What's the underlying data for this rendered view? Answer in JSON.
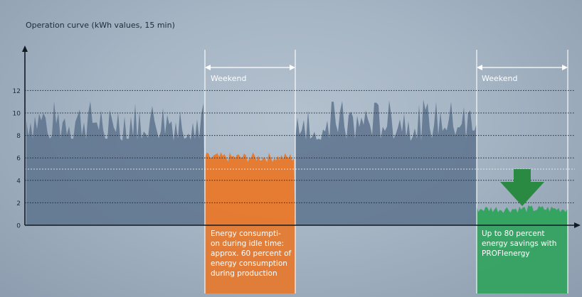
{
  "chart_data": {
    "type": "area",
    "title": "Operation curve (kWh values, 15 min)",
    "xlabel": "",
    "ylabel": "",
    "y_ticks": [
      0,
      2,
      4,
      6,
      8,
      10,
      12
    ],
    "ylim": [
      0,
      15
    ],
    "grid": "dotted horizontal lines at 2, 4, 6, 8, 10, 12; faint line at 5",
    "segments": [
      {
        "name": "production",
        "range": "weekdays 1",
        "baseline_kwh": 7.5,
        "peak_kwh": 11.2,
        "color": "#5d738d"
      },
      {
        "name": "weekend-idle",
        "range": "weekend 1",
        "baseline_kwh": 5.6,
        "peak_kwh": 6.5,
        "color": "#e8782a"
      },
      {
        "name": "production",
        "range": "weekdays 2",
        "baseline_kwh": 7.5,
        "peak_kwh": 11.2,
        "color": "#5d738d"
      },
      {
        "name": "weekend-profienergy",
        "range": "weekend 2",
        "baseline_kwh": 1.1,
        "peak_kwh": 1.8,
        "color": "#2fa35c"
      }
    ],
    "annotations": {
      "weekend_label_1": "Weekend",
      "weekend_label_2": "Weekend",
      "idle_note": [
        "Energy consumpti-",
        "on during idle time:",
        "approx. 60 percent of",
        "energy consumption",
        "during production"
      ],
      "savings_note": [
        "Up to 80 percent",
        "energy savings with",
        "PROFIenergy"
      ]
    }
  },
  "colors": {
    "production": "#5d738d",
    "idle": "#e8782a",
    "savings": "#2fa35c",
    "arrow": "#2a8a42"
  }
}
